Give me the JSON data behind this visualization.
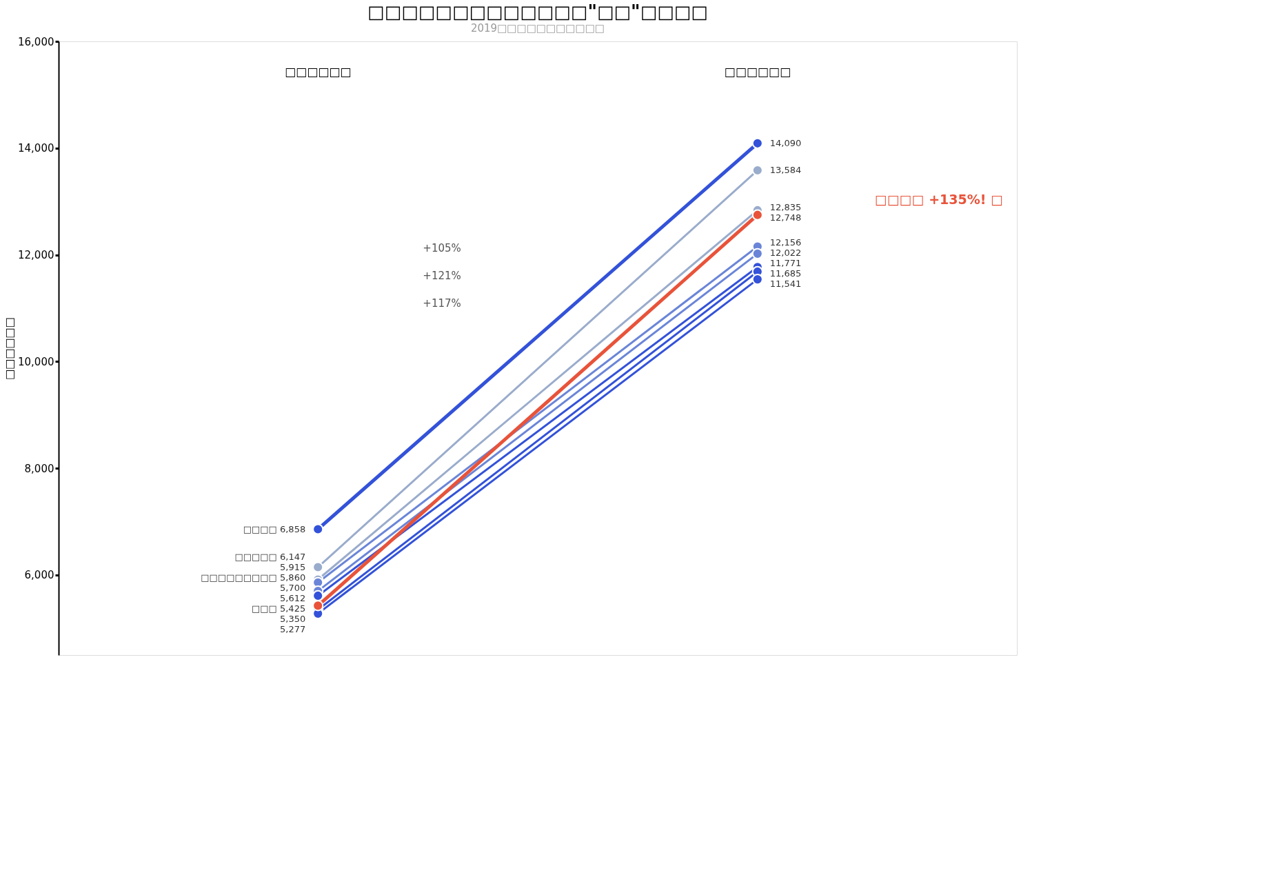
{
  "chart_data": {
    "type": "line",
    "title": "□□□□□□□□□□□□□\"□□\"□□□□",
    "subtitle": "2019□□□□□□□□□□□",
    "ylabel": "□□□□□□",
    "categories": [
      "□□□□□□",
      "□□□□□□"
    ],
    "series": [
      {
        "name": "□□□□",
        "color": "#3352d9",
        "values": [
          6858,
          14090
        ],
        "value_labels": [
          "6,858",
          "14,090"
        ]
      },
      {
        "name": "□□□□□",
        "color": "#9aaccc",
        "values": [
          6147,
          13584
        ],
        "value_labels": [
          "6,147",
          "13,584"
        ]
      },
      {
        "color": "#9aaccc",
        "values": [
          5915,
          12835
        ],
        "value_labels": [
          "5,915",
          "12,835"
        ]
      },
      {
        "name": "□□□□□□□□□",
        "color": "#6a85d8",
        "values": [
          5860,
          12156
        ],
        "value_labels": [
          "5,860",
          "12,156"
        ]
      },
      {
        "color": "#6a85d8",
        "values": [
          5700,
          12022
        ],
        "value_labels": [
          "5,700",
          "12,022"
        ]
      },
      {
        "color": "#3352d9",
        "values": [
          5612,
          11771
        ],
        "value_labels": [
          "5,612",
          "11,771"
        ]
      },
      {
        "color": "#3352d9",
        "values": [
          5350,
          11685
        ],
        "value_labels": [
          "5,350",
          "11,685"
        ]
      },
      {
        "color": "#3352d9",
        "values": [
          5277,
          11541
        ],
        "value_labels": [
          "5,277",
          "11,541"
        ]
      },
      {
        "name": "□□□",
        "color": "#e8533a",
        "values": [
          5425,
          12748
        ],
        "value_labels": [
          "5,425",
          "12,748"
        ]
      }
    ],
    "ylim": [
      4500,
      16000
    ],
    "yticks": [
      {
        "value": 6000,
        "label": "6,000"
      },
      {
        "value": 8000,
        "label": "8,000"
      },
      {
        "value": 10000,
        "label": "10,000"
      },
      {
        "value": 12000,
        "label": "12,000"
      },
      {
        "value": 14000,
        "label": "14,000"
      },
      {
        "value": 16000,
        "label": "16,000"
      }
    ],
    "marker": "circle",
    "annotations": [
      "+105%",
      "+121%",
      "+117%",
      "□□□□ +135%! □"
    ]
  }
}
